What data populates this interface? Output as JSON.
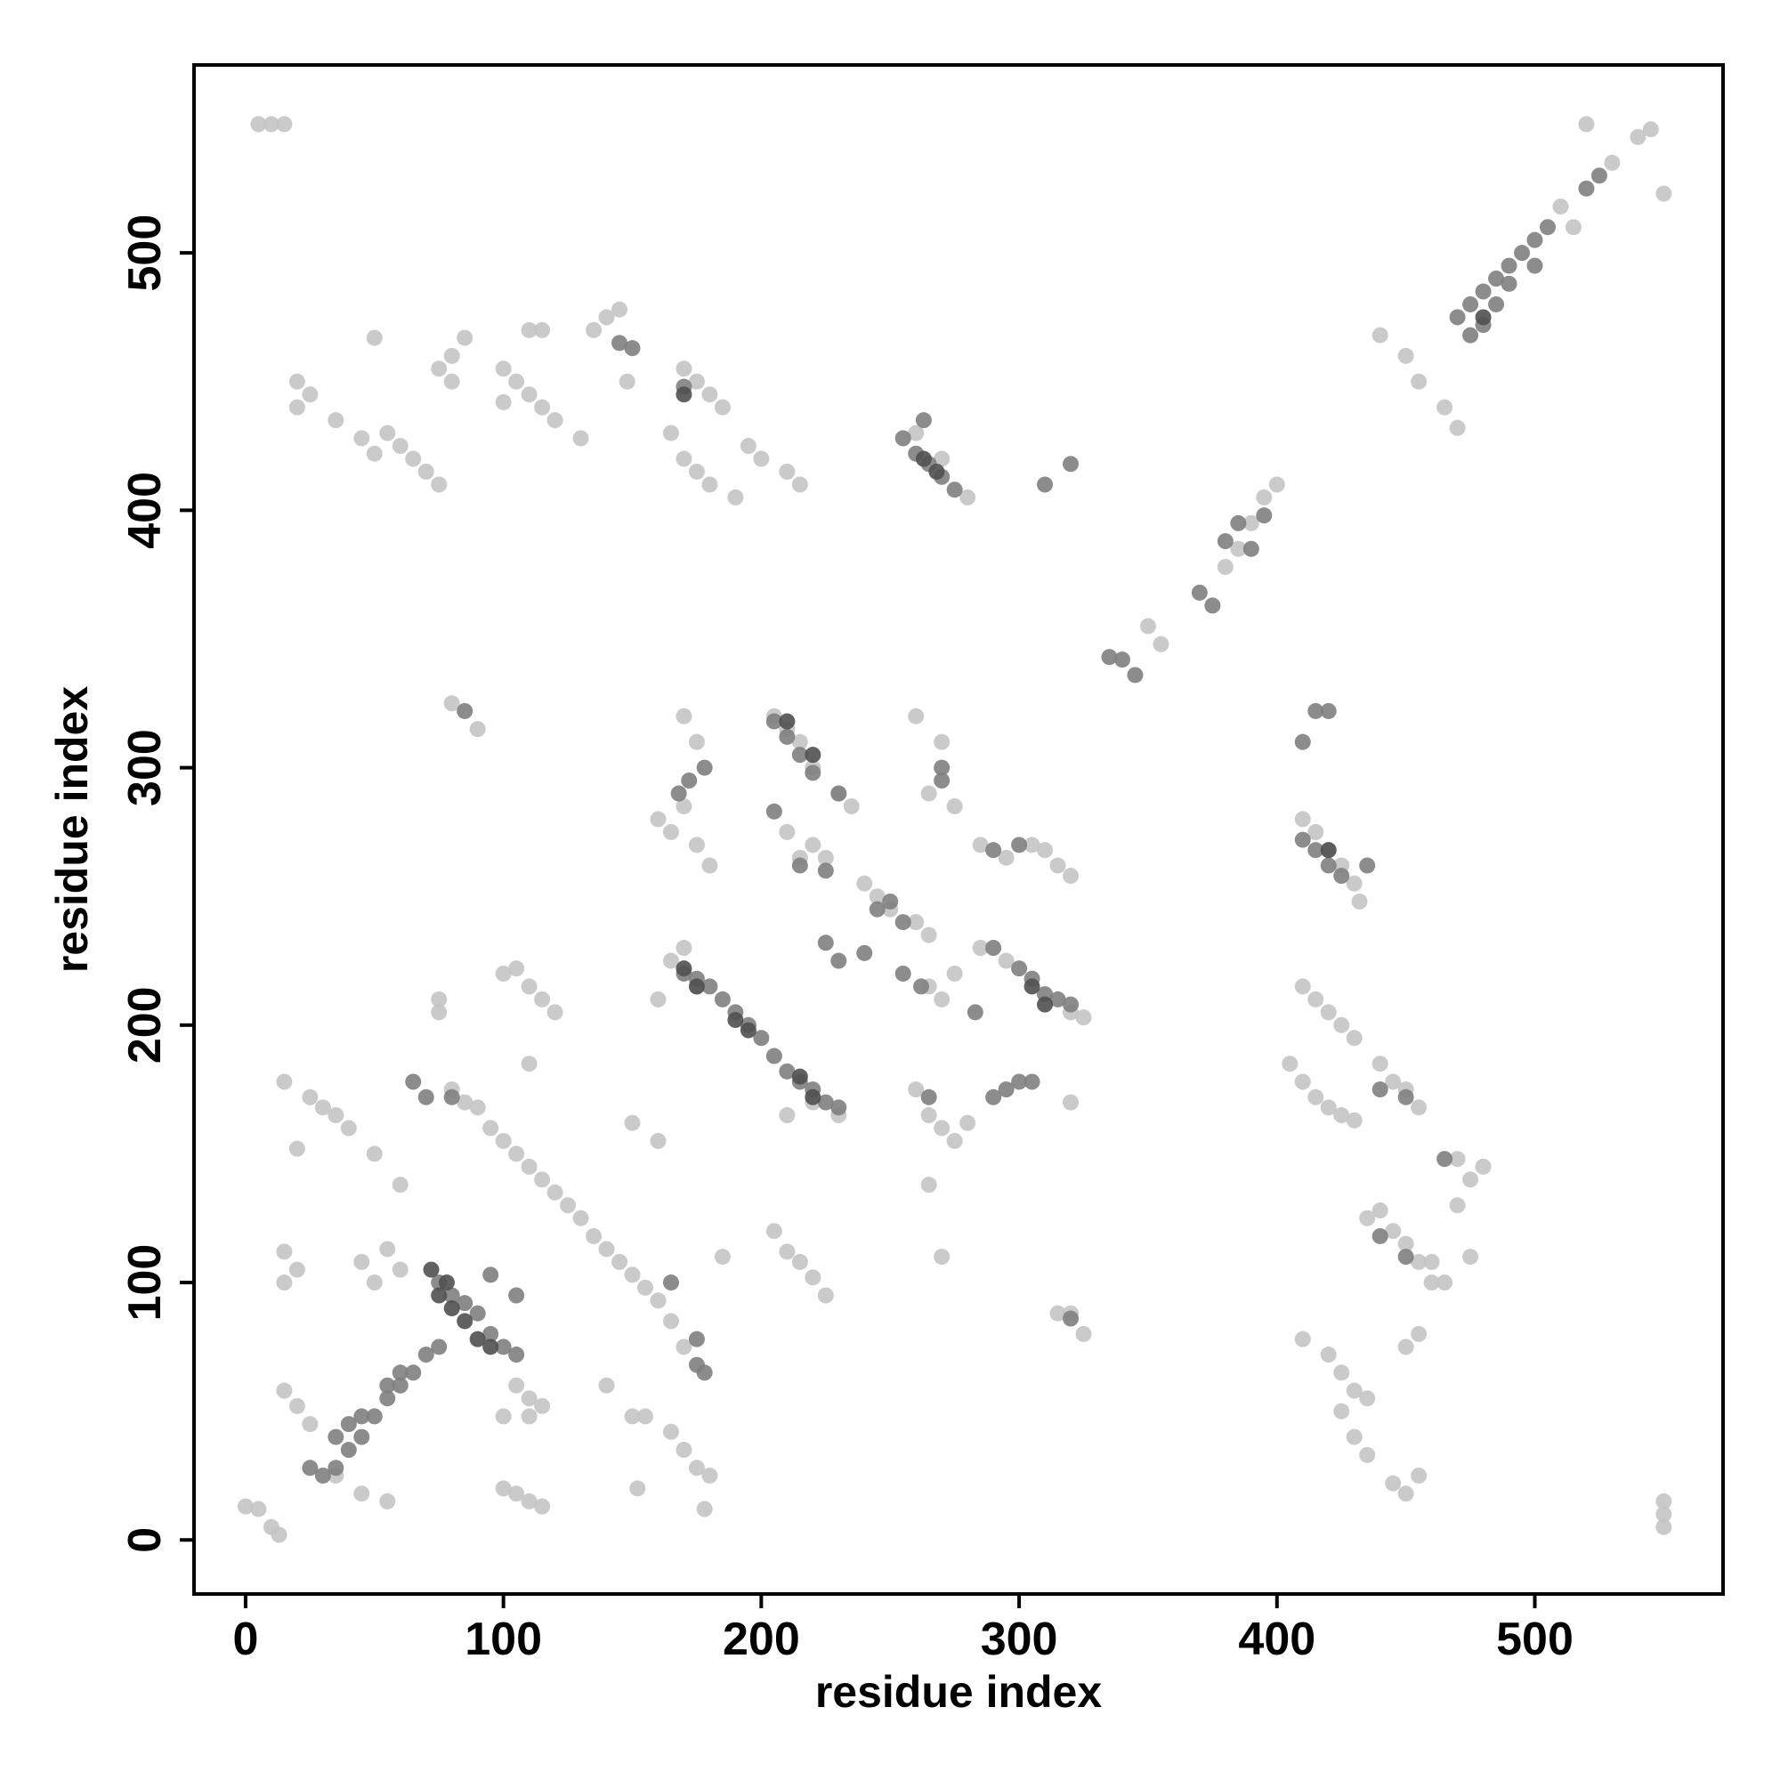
{
  "chart_data": {
    "type": "scatter",
    "xlabel": "residue index",
    "ylabel": "residue index",
    "xlim": [
      -20,
      573
    ],
    "ylim": [
      -21,
      573
    ],
    "xticks": [
      0,
      100,
      200,
      300,
      400,
      500
    ],
    "yticks": [
      0,
      100,
      200,
      300,
      400,
      500
    ],
    "series": [
      {
        "color": "#c4c4c4",
        "x": [
          5,
          10,
          15,
          0,
          5,
          10,
          13,
          20,
          25,
          20,
          35,
          45,
          50,
          55,
          60,
          65,
          70,
          75,
          50,
          75,
          80,
          85,
          80,
          100,
          105,
          110,
          115,
          120,
          130,
          100,
          110,
          115,
          135,
          140,
          145,
          148,
          170,
          175,
          180,
          185,
          165,
          170,
          175,
          180,
          190,
          195,
          200,
          210,
          215,
          260,
          270,
          280,
          395,
          400,
          390,
          385,
          380,
          350,
          355,
          440,
          450,
          455,
          465,
          470,
          520,
          530,
          540,
          545,
          550,
          510,
          515,
          80,
          90,
          160,
          165,
          170,
          175,
          180,
          170,
          175,
          205,
          210,
          215,
          220,
          230,
          235,
          260,
          270,
          265,
          275,
          210,
          215,
          220,
          225,
          240,
          245,
          250,
          260,
          265,
          285,
          295,
          305,
          310,
          315,
          320,
          410,
          415,
          420,
          425,
          430,
          432,
          75,
          75,
          100,
          105,
          110,
          115,
          120,
          160,
          165,
          170,
          175,
          285,
          295,
          275,
          270,
          265,
          320,
          325,
          410,
          415,
          420,
          425,
          430,
          405,
          410,
          415,
          420,
          425,
          430,
          440,
          445,
          450,
          455,
          15,
          20,
          25,
          30,
          35,
          40,
          50,
          60,
          80,
          85,
          90,
          95,
          100,
          105,
          110,
          115,
          120,
          125,
          130,
          135,
          140,
          145,
          150,
          155,
          160,
          165,
          170,
          150,
          160,
          110,
          205,
          210,
          215,
          220,
          225,
          210,
          220,
          230,
          260,
          265,
          270,
          275,
          280,
          320,
          265,
          270,
          15,
          20,
          15,
          45,
          50,
          55,
          60,
          105,
          110,
          100,
          110,
          115,
          15,
          20,
          25,
          35,
          45,
          55,
          100,
          105,
          110,
          115,
          150,
          155,
          165,
          170,
          175,
          180,
          178,
          152,
          140,
          185,
          315,
          320,
          325,
          410,
          420,
          425,
          430,
          425,
          435,
          430,
          435,
          440,
          445,
          450,
          455,
          460,
          435,
          460,
          465,
          475,
          470,
          475,
          480,
          470,
          445,
          450,
          455,
          450,
          455,
          550,
          550,
          550
        ],
        "values": [
          550,
          550,
          550,
          13,
          12,
          5,
          2,
          450,
          445,
          440,
          435,
          428,
          422,
          430,
          425,
          420,
          415,
          410,
          467,
          455,
          460,
          467,
          450,
          455,
          450,
          445,
          440,
          435,
          428,
          442,
          470,
          470,
          470,
          475,
          478,
          450,
          455,
          450,
          445,
          440,
          430,
          420,
          415,
          410,
          405,
          425,
          420,
          415,
          410,
          430,
          420,
          405,
          405,
          410,
          395,
          385,
          378,
          355,
          348,
          468,
          460,
          450,
          440,
          432,
          550,
          535,
          545,
          548,
          523,
          518,
          510,
          325,
          315,
          280,
          275,
          285,
          270,
          262,
          320,
          310,
          320,
          315,
          310,
          300,
          290,
          285,
          320,
          310,
          290,
          285,
          275,
          265,
          270,
          265,
          255,
          250,
          245,
          240,
          235,
          270,
          265,
          270,
          268,
          262,
          258,
          280,
          275,
          268,
          262,
          255,
          248,
          210,
          205,
          220,
          222,
          215,
          210,
          205,
          210,
          225,
          230,
          215,
          230,
          225,
          220,
          210,
          215,
          205,
          203,
          215,
          210,
          205,
          200,
          195,
          185,
          178,
          172,
          168,
          165,
          163,
          185,
          178,
          175,
          168,
          178,
          152,
          172,
          168,
          165,
          160,
          150,
          138,
          175,
          170,
          168,
          160,
          155,
          150,
          145,
          140,
          135,
          130,
          125,
          118,
          113,
          108,
          103,
          98,
          93,
          85,
          75,
          162,
          155,
          185,
          120,
          112,
          108,
          102,
          95,
          165,
          170,
          165,
          175,
          165,
          160,
          155,
          162,
          170,
          138,
          110,
          112,
          105,
          100,
          108,
          100,
          113,
          105,
          60,
          55,
          48,
          48,
          52,
          58,
          52,
          45,
          25,
          18,
          15,
          20,
          18,
          15,
          13,
          48,
          48,
          42,
          35,
          28,
          25,
          12,
          20,
          60,
          110,
          88,
          88,
          80,
          78,
          72,
          65,
          58,
          50,
          55,
          40,
          33,
          128,
          120,
          115,
          108,
          100,
          125,
          108,
          100,
          110,
          130,
          140,
          145,
          148,
          22,
          18,
          25,
          75,
          80,
          15,
          10,
          5
        ]
      },
      {
        "color": "#7f7f7f",
        "x": [
          145,
          150,
          170,
          255,
          260,
          265,
          270,
          275,
          263,
          310,
          320,
          370,
          375,
          380,
          385,
          395,
          390,
          340,
          345,
          335,
          470,
          475,
          480,
          485,
          490,
          495,
          500,
          505,
          475,
          480,
          485,
          490,
          500,
          520,
          525,
          85,
          205,
          210,
          215,
          220,
          230,
          168,
          172,
          178,
          205,
          215,
          225,
          245,
          255,
          250,
          225,
          230,
          240,
          270,
          270,
          290,
          300,
          410,
          415,
          420,
          425,
          435,
          410,
          415,
          420,
          170,
          175,
          180,
          185,
          190,
          195,
          200,
          205,
          210,
          215,
          220,
          225,
          230,
          290,
          300,
          305,
          310,
          315,
          320,
          255,
          262,
          283,
          290,
          295,
          300,
          305,
          265,
          440,
          450,
          465,
          65,
          70,
          80,
          30,
          35,
          40,
          45,
          50,
          55,
          60,
          65,
          70,
          75,
          25,
          35,
          40,
          45,
          55,
          60,
          75,
          80,
          85,
          90,
          95,
          100,
          105,
          95,
          105,
          165,
          175,
          175,
          178,
          320,
          440,
          450
        ],
        "values": [
          465,
          463,
          448,
          428,
          422,
          418,
          413,
          408,
          435,
          410,
          418,
          368,
          363,
          388,
          395,
          398,
          385,
          342,
          336,
          343,
          475,
          480,
          485,
          490,
          495,
          500,
          505,
          510,
          468,
          472,
          480,
          488,
          495,
          525,
          530,
          322,
          318,
          312,
          305,
          298,
          290,
          290,
          295,
          300,
          283,
          262,
          260,
          245,
          240,
          248,
          232,
          225,
          228,
          300,
          295,
          268,
          270,
          272,
          268,
          262,
          258,
          262,
          310,
          322,
          322,
          220,
          218,
          215,
          210,
          205,
          200,
          195,
          188,
          182,
          178,
          175,
          170,
          168,
          230,
          222,
          218,
          212,
          210,
          208,
          220,
          215,
          205,
          172,
          175,
          178,
          178,
          172,
          175,
          172,
          148,
          178,
          172,
          172,
          25,
          28,
          35,
          40,
          48,
          55,
          60,
          65,
          72,
          75,
          28,
          40,
          45,
          48,
          60,
          65,
          100,
          95,
          92,
          88,
          80,
          75,
          72,
          103,
          95,
          100,
          78,
          68,
          65,
          86,
          118,
          110
        ]
      },
      {
        "color": "#505050",
        "x": [
          75,
          80,
          85,
          90,
          95,
          78,
          72,
          170,
          263,
          268,
          210,
          220,
          215,
          220,
          420,
          305,
          310,
          480,
          170,
          175,
          195,
          190
        ],
        "values": [
          95,
          90,
          85,
          78,
          75,
          100,
          105,
          445,
          420,
          415,
          318,
          305,
          180,
          172,
          268,
          215,
          208,
          475,
          222,
          215,
          198,
          202
        ]
      }
    ]
  }
}
